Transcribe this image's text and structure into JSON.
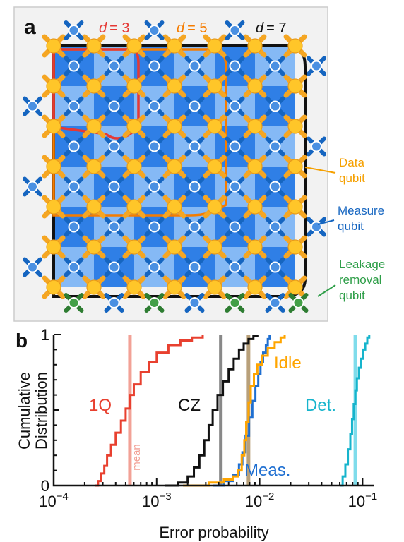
{
  "panel_a": {
    "panel_label": "a",
    "distance_labels": [
      {
        "prefix": "d",
        "value": "= 3",
        "color": "#e53935"
      },
      {
        "prefix": "d",
        "value": "= 5",
        "color": "#f57c00"
      },
      {
        "prefix": "d",
        "value": "= 7",
        "color": "#111111"
      }
    ],
    "legend": {
      "data_qubit": [
        "Data",
        "qubit"
      ],
      "measure_qubit": [
        "Measure",
        "qubit"
      ],
      "leakage_qubit": [
        "Leakage",
        "removal",
        "qubit"
      ]
    },
    "colors": {
      "data": "#ffc629",
      "data_arm": "#f5a623",
      "measure": "#4a90e2",
      "measure_arm": "#1565c0",
      "leakage": "#43a047",
      "plaquette_dark": "#2f7fe6",
      "plaquette_light": "#85b9f5",
      "legend_data_text": "#f5a000",
      "legend_measure_text": "#1565c0",
      "legend_leakage_text": "#2e9e48"
    }
  },
  "chart_data": {
    "type": "line",
    "panel_label": "b",
    "xlabel": "Error probability",
    "ylabel": "Cumulative Distribution",
    "x_scale": "log",
    "xlim": [
      0.0001,
      0.13
    ],
    "ylim": [
      0,
      1
    ],
    "x_ticks": [
      {
        "value": 0.0001,
        "base": "10",
        "exp": "−4"
      },
      {
        "value": 0.001,
        "base": "10",
        "exp": "−3"
      },
      {
        "value": 0.01,
        "base": "10",
        "exp": "−2"
      },
      {
        "value": 0.1,
        "base": "10",
        "exp": "−1"
      }
    ],
    "y_ticks": [
      {
        "value": 0,
        "label": "0"
      },
      {
        "value": 1,
        "label": "1"
      }
    ],
    "series": [
      {
        "name": "1Q",
        "color": "#e8402f",
        "mean": 0.00055,
        "mean_color": "#f2a196",
        "x": [
          0.00025,
          0.00027,
          0.00029,
          0.00031,
          0.00033,
          0.00036,
          0.0004,
          0.00045,
          0.0005,
          0.00055,
          0.0006,
          0.0007,
          0.00085,
          0.001,
          0.0013,
          0.0017,
          0.0022,
          0.0028
        ],
        "y": [
          0,
          0.03,
          0.08,
          0.13,
          0.2,
          0.27,
          0.35,
          0.43,
          0.51,
          0.6,
          0.67,
          0.75,
          0.82,
          0.88,
          0.93,
          0.96,
          0.98,
          1.0
        ]
      },
      {
        "name": "CZ",
        "color": "#111111",
        "mean": 0.0042,
        "mean_color": "#888888",
        "x": [
          0.0012,
          0.0016,
          0.002,
          0.0023,
          0.0026,
          0.0029,
          0.0032,
          0.0035,
          0.0039,
          0.0044,
          0.005,
          0.0056,
          0.0063,
          0.007,
          0.0078,
          0.0087,
          0.0095
        ],
        "y": [
          0,
          0.02,
          0.06,
          0.12,
          0.2,
          0.3,
          0.4,
          0.5,
          0.6,
          0.69,
          0.77,
          0.84,
          0.9,
          0.94,
          0.97,
          0.99,
          1.0
        ]
      },
      {
        "name": "Meas.",
        "color": "#1f6fd1",
        "mean": 0.0078,
        "mean_color": "#b8a07a",
        "x": [
          0.0035,
          0.0045,
          0.0055,
          0.0063,
          0.0068,
          0.0073,
          0.0079,
          0.0085,
          0.0091,
          0.0097,
          0.0102,
          0.0108,
          0.0115,
          0.012,
          0.0125
        ],
        "y": [
          0,
          0.03,
          0.07,
          0.14,
          0.22,
          0.33,
          0.45,
          0.56,
          0.66,
          0.74,
          0.82,
          0.88,
          0.93,
          0.97,
          1.0
        ]
      },
      {
        "name": "Idle",
        "color": "#ffa500",
        "x": [
          0.0018,
          0.0032,
          0.0045,
          0.0055,
          0.0062,
          0.0067,
          0.0071,
          0.0074,
          0.0078,
          0.0082,
          0.0088,
          0.0095,
          0.0105,
          0.012,
          0.014,
          0.016,
          0.0175
        ],
        "y": [
          0,
          0.02,
          0.04,
          0.06,
          0.1,
          0.2,
          0.3,
          0.42,
          0.55,
          0.66,
          0.74,
          0.8,
          0.86,
          0.91,
          0.95,
          0.98,
          1.0
        ]
      },
      {
        "name": "Det.",
        "color": "#16b4cc",
        "mean": 0.085,
        "mean_color": "#7fdceb",
        "x": [
          0.06,
          0.064,
          0.068,
          0.072,
          0.076,
          0.079,
          0.082,
          0.085,
          0.088,
          0.092,
          0.096,
          0.101,
          0.106,
          0.111,
          0.116
        ],
        "y": [
          0,
          0.06,
          0.14,
          0.24,
          0.34,
          0.44,
          0.54,
          0.63,
          0.71,
          0.78,
          0.84,
          0.9,
          0.94,
          0.98,
          1.0
        ]
      }
    ],
    "annotations": {
      "mean_label": "mean"
    }
  }
}
